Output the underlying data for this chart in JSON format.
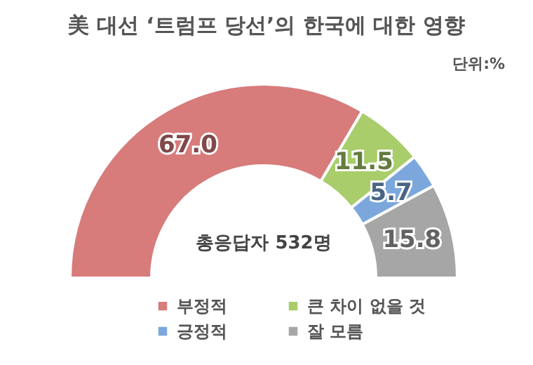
{
  "chart_data": {
    "type": "donut",
    "title": "美 대선 ‘트럼프 당선’의 한국에 대한 영향",
    "categories": [
      "부정적",
      "큰 차이 없을 것",
      "긍정적",
      "잘 모름"
    ],
    "values": [
      67.0,
      11.5,
      5.7,
      15.8
    ],
    "colors": [
      "#d77b7b",
      "#a8cd6a",
      "#7ba7dc",
      "#a6a6a6"
    ],
    "value_labels": [
      "67.0",
      "11.5",
      "5.7",
      "15.8"
    ],
    "legend": "bottom",
    "annotations": [
      "단위:%",
      "총응답자 532명"
    ]
  }
}
